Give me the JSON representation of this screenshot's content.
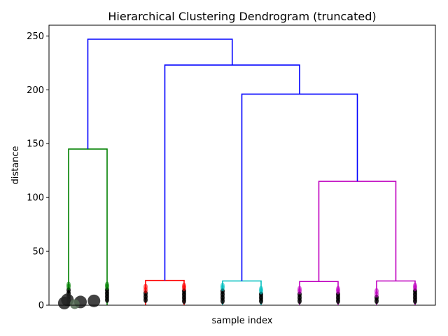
{
  "chart_data": {
    "type": "dendrogram",
    "title": "Hierarchical Clustering Dendrogram (truncated)",
    "xlabel": "sample index",
    "ylabel": "distance",
    "ylim": [
      0,
      260
    ],
    "yticks": [
      0,
      50,
      100,
      150,
      200,
      250
    ],
    "grid": false,
    "leaf_count": 10,
    "colors": {
      "above_threshold": "#0000ff",
      "green": "#008000",
      "red": "#ff0000",
      "cyan": "#00bfbf",
      "magenta": "#bf00bf",
      "leaf_marker": "#000000"
    },
    "links": [
      {
        "id": "c0",
        "left_leaf": 0,
        "right_leaf": 1,
        "height": 145,
        "left_base": 0,
        "right_base": 0,
        "color": "green"
      },
      {
        "id": "c1",
        "left_leaf": 2,
        "right_leaf": 3,
        "height": 23,
        "left_base": 0,
        "right_base": 0,
        "color": "red"
      },
      {
        "id": "c2",
        "left_leaf": 4,
        "right_leaf": 5,
        "height": 22.5,
        "left_base": 0,
        "right_base": 0,
        "color": "cyan"
      },
      {
        "id": "c3",
        "left_leaf": 6,
        "right_leaf": 7,
        "height": 22,
        "left_base": 0,
        "right_base": 0,
        "color": "magenta"
      },
      {
        "id": "c4",
        "left_leaf": 8,
        "right_leaf": 9,
        "height": 22.5,
        "left_base": 0,
        "right_base": 0,
        "color": "magenta"
      },
      {
        "id": "c5",
        "left": "c3",
        "right": "c4",
        "height": 115,
        "color": "magenta"
      },
      {
        "id": "c6",
        "left": "c2",
        "right": "c5",
        "height": 196,
        "color": "above_threshold"
      },
      {
        "id": "c7",
        "left": "c1",
        "right": "c6",
        "height": 223,
        "color": "above_threshold"
      },
      {
        "id": "c8",
        "left": "c0",
        "right": "c7",
        "height": 247,
        "color": "above_threshold"
      }
    ],
    "leaf_markers": [
      {
        "leaf": 0,
        "color": "green",
        "levels": [
          2,
          5,
          8,
          11,
          14,
          17,
          19
        ]
      },
      {
        "leaf": 1,
        "color": "green",
        "levels": [
          5,
          8,
          11,
          14,
          17,
          19
        ]
      },
      {
        "leaf": 2,
        "color": "red",
        "levels": [
          5,
          8,
          11,
          14,
          17
        ]
      },
      {
        "leaf": 3,
        "color": "red",
        "levels": [
          4,
          7,
          10,
          13,
          16,
          18
        ]
      },
      {
        "leaf": 4,
        "color": "cyan",
        "levels": [
          4,
          7,
          10,
          13,
          16,
          18
        ]
      },
      {
        "leaf": 5,
        "color": "cyan",
        "levels": [
          4,
          7,
          10,
          13,
          15
        ]
      },
      {
        "leaf": 6,
        "color": "magenta",
        "levels": [
          4,
          7,
          10,
          13,
          15
        ]
      },
      {
        "leaf": 7,
        "color": "magenta",
        "levels": [
          4,
          7,
          10,
          13,
          15
        ]
      },
      {
        "leaf": 8,
        "color": "magenta",
        "levels": [
          4,
          7,
          10,
          13
        ]
      },
      {
        "leaf": 9,
        "color": "magenta",
        "levels": [
          4,
          7,
          10,
          13,
          16,
          18
        ]
      }
    ],
    "scatter_blobs": [
      {
        "x_leaf": 0.26,
        "y": 5,
        "size": "large"
      },
      {
        "x_leaf": 0.18,
        "y": 2,
        "size": "large"
      },
      {
        "x_leaf": 0.6,
        "y": 3,
        "size": "large"
      },
      {
        "x_leaf": 0.95,
        "y": 4,
        "size": "large"
      },
      {
        "x_leaf": 0.45,
        "y": 1,
        "size": "medium"
      }
    ]
  }
}
